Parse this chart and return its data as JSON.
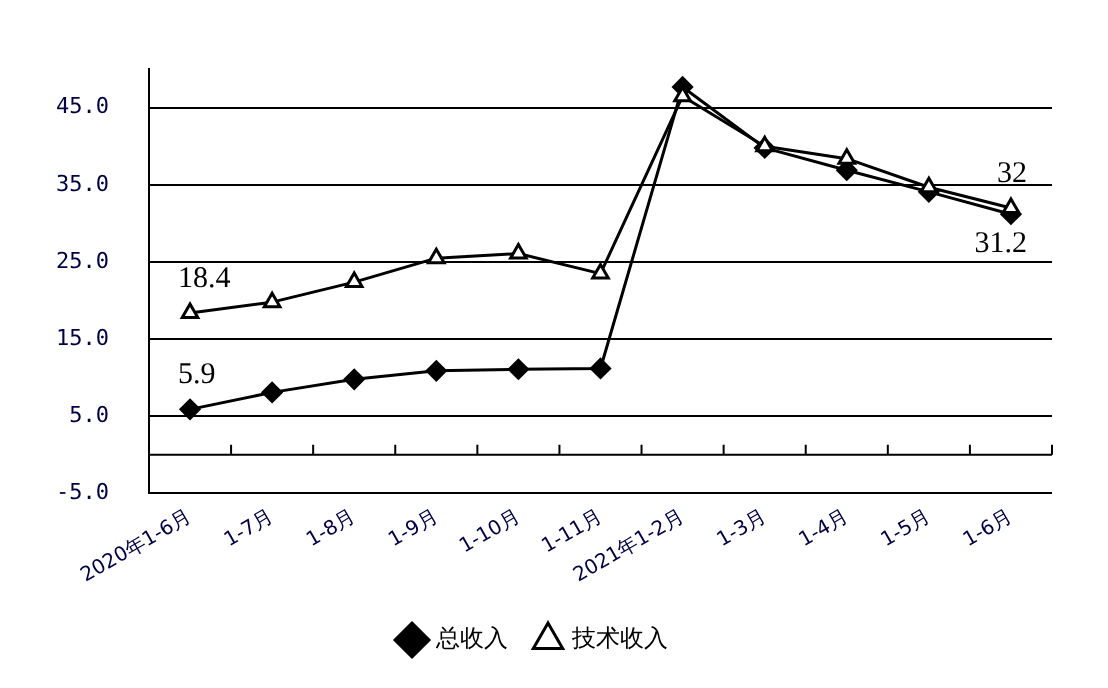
{
  "chart_data": {
    "type": "line",
    "categories": [
      "2020年1-6月",
      "1-7月",
      "1-8月",
      "1-9月",
      "1-10月",
      "1-11月",
      "2021年1-2月",
      "1-3月",
      "1-4月",
      "1-5月",
      "1-6月"
    ],
    "series": [
      {
        "name": "总收入",
        "color": "#000000",
        "marker": "diamond",
        "values": [
          5.9,
          8.1,
          9.8,
          10.9,
          11.1,
          11.2,
          47.7,
          39.8,
          36.9,
          34.1,
          31.2
        ],
        "value_labels": [
          "5.9",
          null,
          null,
          null,
          null,
          null,
          null,
          null,
          null,
          null,
          "31.2"
        ]
      },
      {
        "name": "技术收入",
        "color": "#000000",
        "marker": "triangle",
        "values": [
          18.4,
          19.8,
          22.4,
          25.5,
          26.1,
          23.5,
          46.5,
          40.0,
          38.4,
          34.7,
          32
        ],
        "value_labels": [
          "18.4",
          null,
          null,
          null,
          null,
          null,
          null,
          null,
          null,
          null,
          "32"
        ]
      }
    ],
    "ylim": [
      -5,
      50
    ],
    "yticks": [
      {
        "value": -5,
        "label": "-5.0"
      },
      {
        "value": 5,
        "label": "5.0"
      },
      {
        "value": 15,
        "label": "15.0"
      },
      {
        "value": 25,
        "label": "25.0"
      },
      {
        "value": 35,
        "label": "35.0"
      },
      {
        "value": 45,
        "label": "45.0"
      }
    ],
    "grid": "y",
    "legend": "bottom",
    "line_style": "solid"
  }
}
